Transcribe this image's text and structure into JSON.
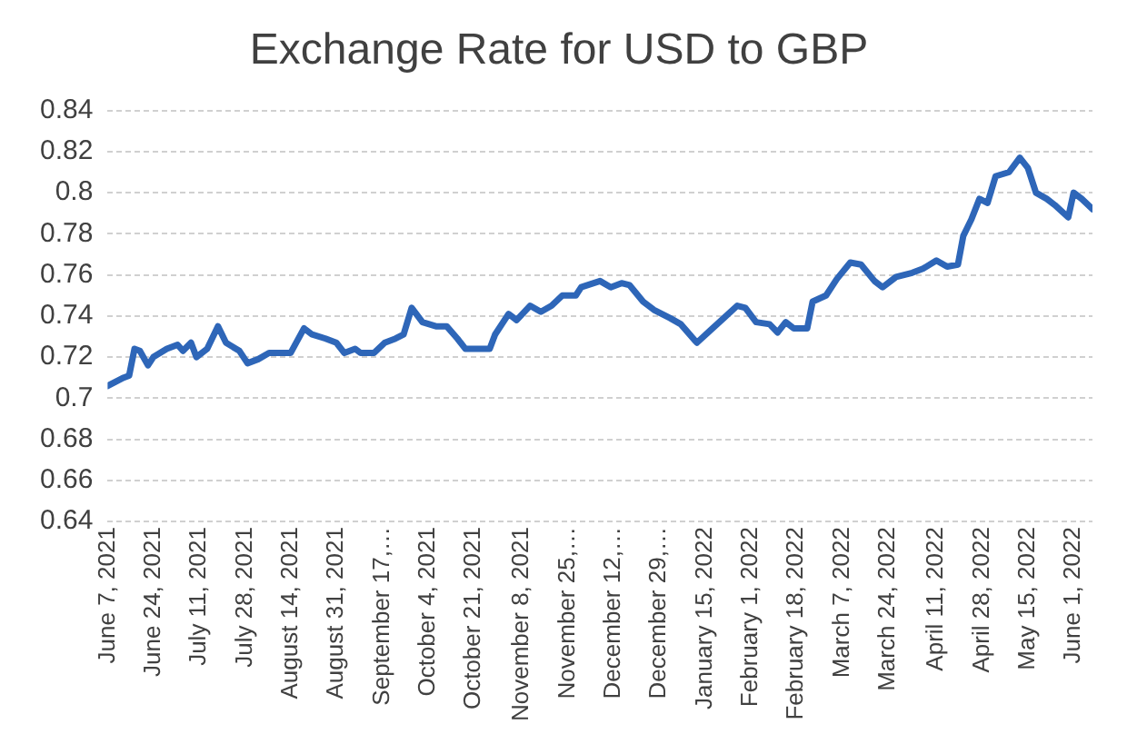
{
  "chart_data": {
    "type": "line",
    "title": "Exchange Rate for USD to GBP",
    "x": [
      "2021-06-07",
      "2021-06-13",
      "2021-06-15",
      "2021-06-17",
      "2021-06-19",
      "2021-06-22",
      "2021-06-24",
      "2021-06-29",
      "2021-07-03",
      "2021-07-05",
      "2021-07-08",
      "2021-07-10",
      "2021-07-14",
      "2021-07-18",
      "2021-07-21",
      "2021-07-26",
      "2021-07-29",
      "2021-08-02",
      "2021-08-06",
      "2021-08-11",
      "2021-08-14",
      "2021-08-19",
      "2021-08-22",
      "2021-08-27",
      "2021-08-31",
      "2021-09-03",
      "2021-09-07",
      "2021-09-09",
      "2021-09-14",
      "2021-09-18",
      "2021-09-22",
      "2021-09-25",
      "2021-09-28",
      "2021-10-02",
      "2021-10-07",
      "2021-10-11",
      "2021-10-15",
      "2021-10-18",
      "2021-10-23",
      "2021-10-27",
      "2021-10-29",
      "2021-11-03",
      "2021-11-06",
      "2021-11-11",
      "2021-11-15",
      "2021-11-19",
      "2021-11-23",
      "2021-11-28",
      "2021-11-30",
      "2021-12-07",
      "2021-12-11",
      "2021-12-15",
      "2021-12-18",
      "2021-12-23",
      "2021-12-27",
      "2022-01-02",
      "2022-01-06",
      "2022-01-12",
      "2022-01-17",
      "2022-01-22",
      "2022-01-27",
      "2022-01-30",
      "2022-02-03",
      "2022-02-08",
      "2022-02-11",
      "2022-02-14",
      "2022-02-17",
      "2022-02-22",
      "2022-02-24",
      "2022-03-01",
      "2022-03-05",
      "2022-03-10",
      "2022-03-14",
      "2022-03-19",
      "2022-03-22",
      "2022-03-27",
      "2022-04-02",
      "2022-04-06",
      "2022-04-11",
      "2022-04-15",
      "2022-04-19",
      "2022-04-21",
      "2022-04-24",
      "2022-04-27",
      "2022-04-30",
      "2022-05-03",
      "2022-05-08",
      "2022-05-12",
      "2022-05-15",
      "2022-05-18",
      "2022-05-22",
      "2022-05-25",
      "2022-05-30",
      "2022-06-01",
      "2022-06-04",
      "2022-06-08"
    ],
    "series": [
      {
        "color": "#2e66b8",
        "values": [
          0.706,
          0.71,
          0.711,
          0.724,
          0.723,
          0.716,
          0.72,
          0.724,
          0.726,
          0.723,
          0.727,
          0.72,
          0.724,
          0.735,
          0.727,
          0.723,
          0.717,
          0.719,
          0.722,
          0.722,
          0.722,
          0.734,
          0.731,
          0.729,
          0.727,
          0.722,
          0.724,
          0.722,
          0.722,
          0.727,
          0.729,
          0.731,
          0.744,
          0.737,
          0.735,
          0.735,
          0.729,
          0.724,
          0.724,
          0.724,
          0.731,
          0.741,
          0.738,
          0.745,
          0.742,
          0.745,
          0.75,
          0.75,
          0.754,
          0.757,
          0.754,
          0.756,
          0.755,
          0.747,
          0.743,
          0.739,
          0.736,
          0.727,
          0.733,
          0.739,
          0.745,
          0.744,
          0.737,
          0.736,
          0.732,
          0.737,
          0.734,
          0.734,
          0.747,
          0.75,
          0.758,
          0.766,
          0.765,
          0.757,
          0.754,
          0.759,
          0.761,
          0.763,
          0.767,
          0.764,
          0.765,
          0.779,
          0.787,
          0.797,
          0.795,
          0.808,
          0.81,
          0.817,
          0.812,
          0.8,
          0.797,
          0.794,
          0.788,
          0.8,
          0.797,
          0.792
        ]
      }
    ],
    "xlim": [
      "2021-06-07",
      "2022-06-08"
    ],
    "xticks": [
      {
        "value": "2021-06-07",
        "label": "June 7, 2021"
      },
      {
        "value": "2021-06-24",
        "label": "June 24, 2021"
      },
      {
        "value": "2021-07-11",
        "label": "July 11, 2021"
      },
      {
        "value": "2021-07-28",
        "label": "July 28, 2021"
      },
      {
        "value": "2021-08-14",
        "label": "August 14, 2021"
      },
      {
        "value": "2021-08-31",
        "label": "August 31, 2021"
      },
      {
        "value": "2021-09-17",
        "label": "September 17,…"
      },
      {
        "value": "2021-10-04",
        "label": "October 4, 2021"
      },
      {
        "value": "2021-10-21",
        "label": "October 21, 2021"
      },
      {
        "value": "2021-11-08",
        "label": "November 8, 2021"
      },
      {
        "value": "2021-11-25",
        "label": "November 25,…"
      },
      {
        "value": "2021-12-12",
        "label": "December 12,…"
      },
      {
        "value": "2021-12-29",
        "label": "December 29,…"
      },
      {
        "value": "2022-01-15",
        "label": "January 15, 2022"
      },
      {
        "value": "2022-02-01",
        "label": "February 1, 2022"
      },
      {
        "value": "2022-02-18",
        "label": "February 18, 2022"
      },
      {
        "value": "2022-03-07",
        "label": "March 7, 2022"
      },
      {
        "value": "2022-03-24",
        "label": "March 24, 2022"
      },
      {
        "value": "2022-04-11",
        "label": "April 11, 2022"
      },
      {
        "value": "2022-04-28",
        "label": "April 28, 2022"
      },
      {
        "value": "2022-05-15",
        "label": "May 15, 2022"
      },
      {
        "value": "2022-06-01",
        "label": "June 1, 2022"
      }
    ],
    "ylim": [
      0.64,
      0.84
    ],
    "yticks": [
      0.64,
      0.66,
      0.68,
      0.7,
      0.72,
      0.74,
      0.76,
      0.78,
      0.8,
      0.82,
      0.84
    ],
    "grid": "y",
    "legend": false,
    "marker": "none",
    "line_style": "solid"
  }
}
